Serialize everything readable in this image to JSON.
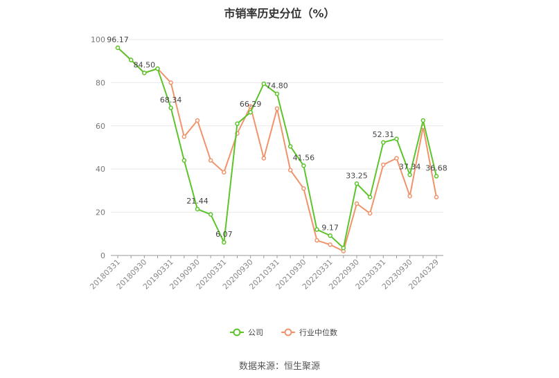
{
  "chart_data": {
    "type": "line",
    "title": "市销率历史分位（%）",
    "source": "数据来源：恒生聚源",
    "ylim": [
      0,
      100
    ],
    "y_ticks": [
      0,
      20,
      40,
      60,
      80,
      100
    ],
    "x_tick_labels": [
      "20180331",
      "20180930",
      "20190331",
      "20190930",
      "20200331",
      "20200930",
      "20210331",
      "20210930",
      "20220331",
      "20220930",
      "20230331",
      "20230930",
      "20240329"
    ],
    "x": [
      "20180331",
      "20180630",
      "20180930",
      "20181231",
      "20190331",
      "20190630",
      "20190930",
      "20191231",
      "20200331",
      "20200630",
      "20200930",
      "20201231",
      "20210331",
      "20210630",
      "20210930",
      "20211231",
      "20220331",
      "20220630",
      "20220930",
      "20221231",
      "20230331",
      "20230630",
      "20230930",
      "20231231",
      "20240329"
    ],
    "series": [
      {
        "name": "公司",
        "color": "#5cc42a",
        "values": [
          96.17,
          90.5,
          84.5,
          86.5,
          68.34,
          44.0,
          21.44,
          19.0,
          6.07,
          61.0,
          66.29,
          79.5,
          74.8,
          50.5,
          41.56,
          12.0,
          9.17,
          3.5,
          33.25,
          27.0,
          52.31,
          54.0,
          37.34,
          62.5,
          36.68
        ],
        "labels": [
          "96.17",
          "",
          "84.50",
          "",
          "68.34",
          "",
          "21.44",
          "",
          "6.07",
          "",
          "66.29",
          "",
          "74.80",
          "",
          "41.56",
          "",
          "9.17",
          "",
          "33.25",
          "",
          "52.31",
          "",
          "37.34",
          "",
          "36.68"
        ]
      },
      {
        "name": "行业中位数",
        "color": "#f0936a",
        "values": [
          96.17,
          90.5,
          84.5,
          86.5,
          80.0,
          55.0,
          62.5,
          44.0,
          38.5,
          56.5,
          69.0,
          45.0,
          68.0,
          39.5,
          31.0,
          7.0,
          5.0,
          2.0,
          24.0,
          19.5,
          42.0,
          45.0,
          27.5,
          59.5,
          27.0
        ]
      }
    ],
    "legend_position": "bottom-center"
  }
}
